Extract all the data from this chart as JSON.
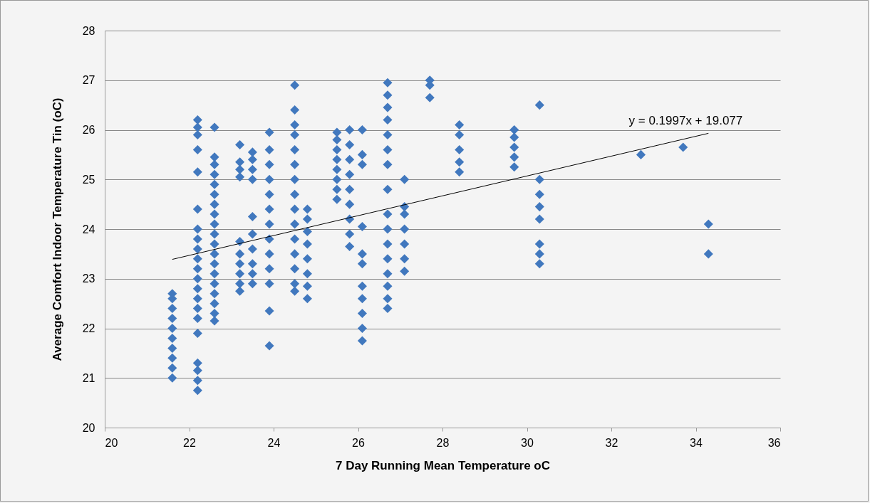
{
  "chart_data": {
    "type": "scatter",
    "xlabel": "7 Day Running Mean Temperature oC",
    "ylabel": "Average Comfort Indoor  Temperature Tin (oC)",
    "xlim": [
      20,
      36
    ],
    "xticks": [
      20,
      22,
      24,
      26,
      28,
      30,
      32,
      34,
      36
    ],
    "ylim": [
      20,
      28
    ],
    "yticks": [
      20,
      21,
      22,
      23,
      24,
      25,
      26,
      27,
      28
    ],
    "grid": "y",
    "series": [
      {
        "marker": "diamond",
        "color": "#4178be",
        "x": [
          21.6,
          21.6,
          21.6,
          21.6,
          21.6,
          21.6,
          21.6,
          21.6,
          21.6,
          21.6,
          22.2,
          22.2,
          22.2,
          22.2,
          22.2,
          22.2,
          22.2,
          22.2,
          22.2,
          22.2,
          22.2,
          22.2,
          22.2,
          22.2,
          22.2,
          22.2,
          22.2,
          22.2,
          22.2,
          22.2,
          22.2,
          22.6,
          22.6,
          22.6,
          22.6,
          22.6,
          22.6,
          22.6,
          22.6,
          22.6,
          22.6,
          22.6,
          22.6,
          22.6,
          22.6,
          22.6,
          22.6,
          22.6,
          22.6,
          22.6,
          23.2,
          23.2,
          23.2,
          23.2,
          23.2,
          23.2,
          23.2,
          23.2,
          23.2,
          23.2,
          23.5,
          23.5,
          23.5,
          23.5,
          23.5,
          23.5,
          23.5,
          23.5,
          23.5,
          23.5,
          23.9,
          23.9,
          23.9,
          23.9,
          23.9,
          23.9,
          23.9,
          23.9,
          23.9,
          23.9,
          23.9,
          23.9,
          23.9,
          24.5,
          24.5,
          24.5,
          24.5,
          24.5,
          24.5,
          24.5,
          24.5,
          24.5,
          24.5,
          24.5,
          24.5,
          24.5,
          24.5,
          24.5,
          24.8,
          24.8,
          24.8,
          24.8,
          24.8,
          24.8,
          24.8,
          24.8,
          25.5,
          25.5,
          25.5,
          25.5,
          25.5,
          25.5,
          25.5,
          25.5,
          25.8,
          25.8,
          25.8,
          25.8,
          25.8,
          25.8,
          25.8,
          25.8,
          25.8,
          26.1,
          26.1,
          26.1,
          26.1,
          26.1,
          26.1,
          26.1,
          26.1,
          26.1,
          26.1,
          26.1,
          26.7,
          26.7,
          26.7,
          26.7,
          26.7,
          26.7,
          26.7,
          26.7,
          26.7,
          26.7,
          26.7,
          26.7,
          26.7,
          26.7,
          26.7,
          26.7,
          27.1,
          27.1,
          27.1,
          27.1,
          27.1,
          27.1,
          27.1,
          27.7,
          27.7,
          27.7,
          28.4,
          28.4,
          28.4,
          28.4,
          28.4,
          29.7,
          29.7,
          29.7,
          29.7,
          29.7,
          30.3,
          30.3,
          30.3,
          30.3,
          30.3,
          30.3,
          30.3,
          30.3,
          32.7,
          33.7,
          34.3,
          34.3
        ],
        "values": [
          21.0,
          21.2,
          21.4,
          21.6,
          21.8,
          22.0,
          22.2,
          22.4,
          22.6,
          22.7,
          20.75,
          20.95,
          21.15,
          21.3,
          21.9,
          22.2,
          22.4,
          22.6,
          22.8,
          23.0,
          23.2,
          23.4,
          23.6,
          23.8,
          24.0,
          24.4,
          25.15,
          25.6,
          25.9,
          26.05,
          26.2,
          22.15,
          22.3,
          22.5,
          22.7,
          22.9,
          23.1,
          23.3,
          23.5,
          23.7,
          23.9,
          24.1,
          24.3,
          24.5,
          24.7,
          24.9,
          25.1,
          25.3,
          25.45,
          26.05,
          22.75,
          22.9,
          23.1,
          23.3,
          23.5,
          23.75,
          25.05,
          25.2,
          25.35,
          25.7,
          22.9,
          23.1,
          23.3,
          23.6,
          23.9,
          24.25,
          25.0,
          25.2,
          25.4,
          25.55,
          21.65,
          22.35,
          22.9,
          23.2,
          23.5,
          23.8,
          24.1,
          24.4,
          24.7,
          25.0,
          25.3,
          25.6,
          25.95,
          22.75,
          22.9,
          23.2,
          23.5,
          23.8,
          24.1,
          24.4,
          24.7,
          25.0,
          25.3,
          25.6,
          25.9,
          26.1,
          26.4,
          26.9,
          22.6,
          22.85,
          23.1,
          23.4,
          23.7,
          23.95,
          24.2,
          24.4,
          24.6,
          24.8,
          25.0,
          25.2,
          25.4,
          25.6,
          25.8,
          25.95,
          23.65,
          23.9,
          24.2,
          24.5,
          24.8,
          25.1,
          25.4,
          25.7,
          26.0,
          21.75,
          22.0,
          22.3,
          22.6,
          22.85,
          23.3,
          23.5,
          24.05,
          25.3,
          25.5,
          26.0,
          22.4,
          22.6,
          22.85,
          23.1,
          23.4,
          23.7,
          24.0,
          24.3,
          24.8,
          25.3,
          25.6,
          25.9,
          26.2,
          26.45,
          26.7,
          26.95,
          23.15,
          23.4,
          23.7,
          24.0,
          24.3,
          24.45,
          25.0,
          26.65,
          26.9,
          27.0,
          25.15,
          25.35,
          25.6,
          25.9,
          26.1,
          25.25,
          25.45,
          25.65,
          25.85,
          26.0,
          23.3,
          23.5,
          23.7,
          24.2,
          24.45,
          24.7,
          25.0,
          26.5,
          25.5,
          25.65,
          23.5,
          24.1
        ]
      },
      {
        "type": "line",
        "color": "#000000",
        "x": [
          21.6,
          34.3
        ],
        "values": [
          23.39,
          25.93
        ]
      }
    ],
    "annotations": [
      "y = 0.1997x + 19.077"
    ]
  }
}
